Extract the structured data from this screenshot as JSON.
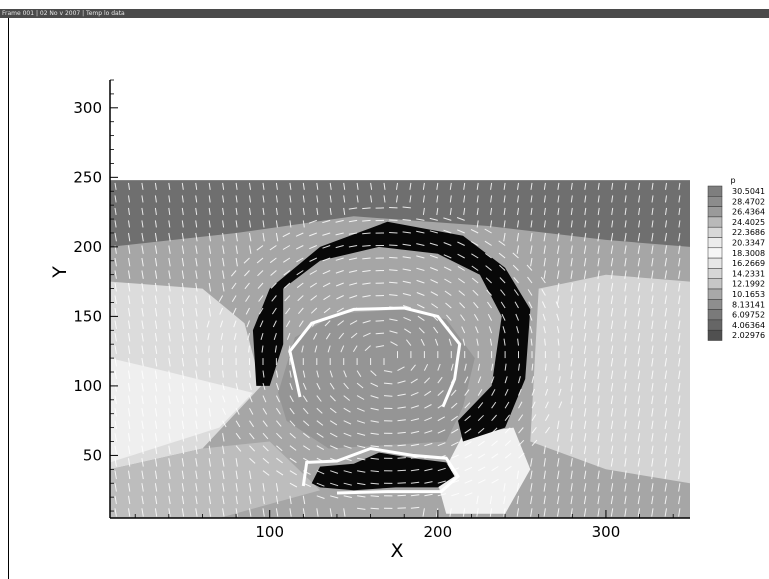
{
  "header": {
    "frame_text": "Frame 001 | 02 No v 2007 | Temp lo data"
  },
  "chart_data": {
    "type": "heatmap",
    "title": "",
    "xlabel": "X",
    "ylabel": "Y",
    "xlim": [
      5,
      350
    ],
    "ylim": [
      5,
      320
    ],
    "data_extent": {
      "x": [
        5,
        350
      ],
      "y": [
        5,
        248
      ]
    },
    "xticks": [
      100,
      200,
      300
    ],
    "yticks": [
      50,
      100,
      150,
      200,
      250,
      300
    ],
    "grid": false,
    "vectors": true,
    "legend": {
      "title": "p",
      "placement": "right",
      "levels": [
        30.5041,
        28.4702,
        26.4364,
        24.4025,
        22.3686,
        20.3347,
        18.3008,
        16.2669,
        14.2331,
        12.1992,
        10.1653,
        8.13141,
        6.09752,
        4.06364,
        2.02976
      ],
      "labels": [
        "30.5041",
        "28.4702",
        "26.4364",
        "24.4025",
        "22.3686",
        "20.3347",
        "18.3008",
        "16.2669",
        "14.2331",
        "12.1992",
        "10.1653",
        "8.13141",
        "6.09752",
        "4.06364",
        "2.02976"
      ],
      "colors": [
        "#7e7e7e",
        "#8c8c8c",
        "#9a9a9a",
        "#b9b9b9",
        "#d8d8d8",
        "#ececec",
        "#f6f6f6",
        "#e6e6e6",
        "#d6d6d6",
        "#c6c6c6",
        "#a8a8a8",
        "#8e8e8e",
        "#7a7a7a",
        "#666666",
        "#505050"
      ]
    },
    "regions": [
      {
        "name": "background",
        "color": "#a6a6a6",
        "points": [
          [
            5,
            5
          ],
          [
            350,
            5
          ],
          [
            350,
            248
          ],
          [
            5,
            248
          ]
        ]
      },
      {
        "name": "top-band",
        "color": "#6f6f6f",
        "points": [
          [
            5,
            200
          ],
          [
            80,
            210
          ],
          [
            150,
            222
          ],
          [
            230,
            215
          ],
          [
            300,
            205
          ],
          [
            350,
            200
          ],
          [
            350,
            248
          ],
          [
            5,
            248
          ]
        ]
      },
      {
        "name": "left-light",
        "color": "#dcdcdc",
        "points": [
          [
            5,
            40
          ],
          [
            60,
            55
          ],
          [
            95,
            100
          ],
          [
            85,
            145
          ],
          [
            60,
            170
          ],
          [
            5,
            175
          ]
        ]
      },
      {
        "name": "left-bright",
        "color": "#efefef",
        "points": [
          [
            5,
            45
          ],
          [
            70,
            70
          ],
          [
            90,
            95
          ],
          [
            40,
            110
          ],
          [
            5,
            120
          ]
        ]
      },
      {
        "name": "right-light",
        "color": "#d4d4d4",
        "points": [
          [
            255,
            60
          ],
          [
            300,
            40
          ],
          [
            350,
            30
          ],
          [
            350,
            175
          ],
          [
            300,
            180
          ],
          [
            260,
            170
          ]
        ]
      },
      {
        "name": "right-bright",
        "color": "#f0f0f0",
        "points": [
          [
            215,
            65
          ],
          [
            245,
            70
          ],
          [
            255,
            40
          ],
          [
            240,
            8
          ],
          [
            205,
            8
          ],
          [
            200,
            30
          ]
        ]
      },
      {
        "name": "bottom-left-mid",
        "color": "#bdbdbd",
        "points": [
          [
            5,
            5
          ],
          [
            70,
            5
          ],
          [
            130,
            25
          ],
          [
            100,
            60
          ],
          [
            60,
            55
          ],
          [
            5,
            40
          ]
        ]
      },
      {
        "name": "inner-core",
        "color": "#959595",
        "points": [
          [
            105,
            95
          ],
          [
            115,
            135
          ],
          [
            140,
            152
          ],
          [
            180,
            155
          ],
          [
            205,
            148
          ],
          [
            222,
            120
          ],
          [
            215,
            85
          ],
          [
            205,
            60
          ],
          [
            135,
            55
          ],
          [
            110,
            75
          ]
        ]
      },
      {
        "name": "dark-ring",
        "color": "#080808",
        "points": [
          [
            92,
            100
          ],
          [
            90,
            140
          ],
          [
            100,
            170
          ],
          [
            130,
            200
          ],
          [
            170,
            218
          ],
          [
            215,
            208
          ],
          [
            240,
            185
          ],
          [
            255,
            155
          ],
          [
            252,
            105
          ],
          [
            240,
            70
          ],
          [
            215,
            60
          ],
          [
            212,
            75
          ],
          [
            232,
            100
          ],
          [
            238,
            150
          ],
          [
            225,
            180
          ],
          [
            200,
            195
          ],
          [
            165,
            200
          ],
          [
            130,
            190
          ],
          [
            108,
            170
          ],
          [
            108,
            130
          ],
          [
            100,
            100
          ]
        ]
      },
      {
        "name": "dark-blob",
        "color": "#080808",
        "points": [
          [
            125,
            30
          ],
          [
            130,
            42
          ],
          [
            150,
            44
          ],
          [
            165,
            52
          ],
          [
            185,
            48
          ],
          [
            205,
            45
          ],
          [
            210,
            35
          ],
          [
            200,
            27
          ],
          [
            175,
            27
          ],
          [
            150,
            25
          ],
          [
            130,
            27
          ]
        ]
      }
    ],
    "contours": [
      {
        "color": "#ffffff",
        "points": [
          [
            118,
            92
          ],
          [
            112,
            125
          ],
          [
            125,
            145
          ],
          [
            150,
            155
          ],
          [
            180,
            156
          ],
          [
            200,
            150
          ],
          [
            213,
            130
          ],
          [
            210,
            105
          ],
          [
            203,
            85
          ]
        ]
      },
      {
        "color": "#ffffff",
        "points": [
          [
            120,
            28
          ],
          [
            122,
            45
          ],
          [
            140,
            46
          ],
          [
            160,
            55
          ],
          [
            185,
            50
          ],
          [
            205,
            48
          ],
          [
            212,
            35
          ],
          [
            202,
            24
          ],
          [
            170,
            24
          ],
          [
            140,
            23
          ]
        ]
      }
    ]
  }
}
